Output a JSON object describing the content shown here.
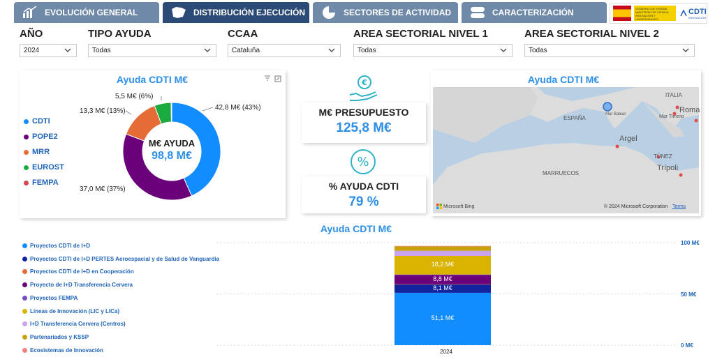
{
  "tabs": [
    {
      "label": "EVOLUCIÓN GENERAL",
      "icon": "bar-chart-icon",
      "active": false
    },
    {
      "label": "DISTRIBUCIÓN EJECUCIÓN",
      "icon": "spain-map-icon",
      "active": true
    },
    {
      "label": "SECTORES DE ACTIVIDAD",
      "icon": "pie-chart-icon",
      "active": false
    },
    {
      "label": "CARACTERIZACIÓN",
      "icon": "toggle-icon",
      "active": false
    }
  ],
  "logo": {
    "name": "CDTI",
    "subtitle": "INNOVACIÓN",
    "ministry": "GOBIERNO DE ESPAÑA MINISTERIO DE CIENCIA, INNOVACIÓN Y UNIVERSIDADES"
  },
  "filters": [
    {
      "label": "AÑO",
      "value": "2024"
    },
    {
      "label": "TIPO AYUDA",
      "value": "Todas"
    },
    {
      "label": "CCAA",
      "value": "Cataluña"
    },
    {
      "label": "AREA SECTORIAL NIVEL 1",
      "value": "Todas"
    },
    {
      "label": "AREA SECTORIAL NIVEL 2",
      "value": "Todas"
    }
  ],
  "donut": {
    "title": "Ayuda CDTI M€",
    "center_label": "M€ AYUDA",
    "center_value": "98,8 M€",
    "legend": [
      "CDTI",
      "POPE2",
      "MRR",
      "EUROST",
      "FEMPA"
    ],
    "slice_labels": [
      "42,8 M€ (43%)",
      "37,0 M€ (37%)",
      "13,3 M€ (13%)",
      "5,5 M€ (6%)"
    ]
  },
  "kpis": [
    {
      "label": "M€ PRESUPUESTO",
      "value": "125,8 M€",
      "icon": "euro-hand-icon"
    },
    {
      "label": "% AYUDA CDTI",
      "value": "79 %",
      "icon": "percent-icon"
    }
  ],
  "map": {
    "title": "Ayuda CDTI M€",
    "labels": [
      "ESPAÑA",
      "Argel",
      "ITALIA",
      "Roma",
      "Mar Tirreno",
      "TÚNEZ",
      "Trípoli",
      "MARRUECOS",
      "Mar Balear"
    ],
    "attribution_bing": "Microsoft Bing",
    "attribution": "© 2024 Microsoft Corporation",
    "terms": "Terms"
  },
  "bar": {
    "title": "Ayuda CDTI M€",
    "legend": [
      "Proyectos CDTI de I+D",
      "Proyectos CDTI de I+D PERTES Aeroespacial y de Salud de Vanguardia",
      "Proyectos CDTI de I+D en Cooperación",
      "Proyecto de I+D Transferencia Cervera",
      "Proyectos FEMPA",
      "Líneas de Innovación (LIC y LICa)",
      "I+D Transferencia Cervera (Centros)",
      "Partenariados y KSSP",
      "Ecosistemas de Innovación"
    ],
    "yticks": [
      "100 M€",
      "50 M€",
      "0 M€"
    ],
    "xcat": "2024",
    "seg_labels": [
      "51,1 M€",
      "8,1 M€",
      "8,8 M€",
      "18,2 M€"
    ]
  },
  "chart_data": [
    {
      "type": "pie",
      "title": "Ayuda CDTI M€",
      "categories": [
        "CDTI",
        "POPE2",
        "MRR",
        "EUROST",
        "FEMPA"
      ],
      "values": [
        42.8,
        37.0,
        13.3,
        5.5,
        0.2
      ],
      "colors": [
        "#118dff",
        "#6b007b",
        "#e66c37",
        "#1aab40",
        "#d64550"
      ],
      "legend": "left"
    },
    {
      "type": "bar",
      "title": "Ayuda CDTI M€",
      "stacked": true,
      "categories": [
        "2024"
      ],
      "series": [
        {
          "name": "Proyectos CDTI de I+D",
          "values": [
            51.1
          ],
          "color": "#118dff"
        },
        {
          "name": "Proyectos CDTI de I+D PERTES Aeroespacial y de Salud de Vanguardia",
          "values": [
            8.1
          ],
          "color": "#12239e"
        },
        {
          "name": "Proyectos CDTI de I+D en Cooperación",
          "values": [
            0.4
          ],
          "color": "#e66c37"
        },
        {
          "name": "Proyecto de I+D Transferencia Cervera",
          "values": [
            8.8
          ],
          "color": "#6b007b"
        },
        {
          "name": "Proyectos FEMPA",
          "values": [
            0.5
          ],
          "color": "#744ec2"
        },
        {
          "name": "Líneas de Innovación (LIC y LICa)",
          "values": [
            18.2
          ],
          "color": "#d9b300"
        },
        {
          "name": "I+D Transferencia Cervera (Centros)",
          "values": [
            5.0
          ],
          "color": "#c8a4e8"
        },
        {
          "name": "Partenariados y KSSP",
          "values": [
            4.2
          ],
          "color": "#c9a20a"
        },
        {
          "name": "Ecosistemas de Innovación",
          "values": [
            0.5
          ],
          "color": "#f08080"
        }
      ],
      "ylim": [
        0,
        100
      ],
      "legend": "left"
    }
  ]
}
